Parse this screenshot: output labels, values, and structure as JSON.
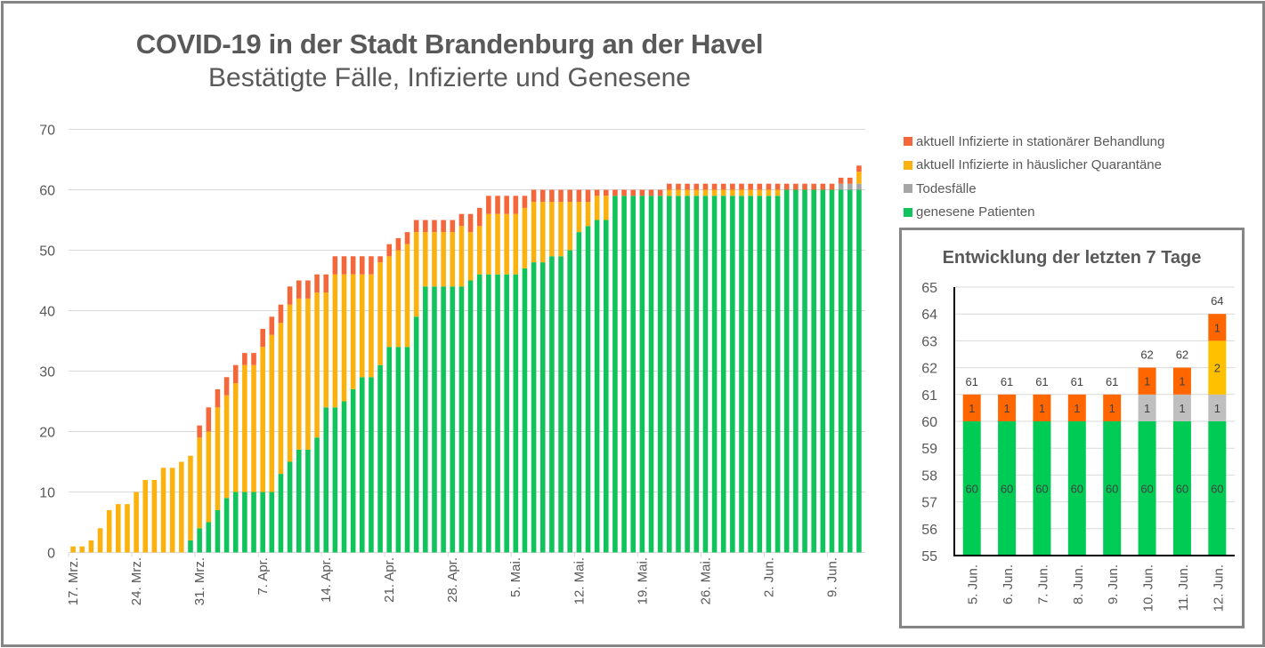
{
  "title": "COVID-19 in der Stadt Brandenburg an der Havel",
  "subtitle": "Bestätigte Fälle, Infizierte und Genesene",
  "colors": {
    "stationaer": "#F4673B",
    "quarantaene": "#FBB20F",
    "todesfaelle": "#A6A6A6",
    "genesen": "#0FC45B",
    "inset_stationaer": "#FF6600",
    "inset_quarantaene": "#FFC000",
    "inset_todesfaelle": "#BFBFBF",
    "inset_genesen": "#00CC55",
    "gridline": "#D9D9D9",
    "text": "#595959"
  },
  "legend": [
    {
      "key": "stationaer",
      "label": "aktuell Infizierte in stationärer Behandlung"
    },
    {
      "key": "quarantaene",
      "label": "aktuell Infizierte in häuslicher Quarantäne"
    },
    {
      "key": "todesfaelle",
      "label": "Todesfälle"
    },
    {
      "key": "genesen",
      "label": "genesene Patienten"
    }
  ],
  "chart_data": [
    {
      "type": "bar",
      "stacked": true,
      "title": "COVID-19 in der Stadt Brandenburg an der Havel",
      "subtitle": "Bestätigte Fälle, Infizierte und Genesene",
      "xlabel": "",
      "ylabel": "",
      "ylim": [
        0,
        70
      ],
      "yticks": [
        0,
        10,
        20,
        30,
        40,
        50,
        60,
        70
      ],
      "grid": true,
      "legend_position": "right",
      "start_date": "17. Mrz.",
      "num_days": 88,
      "xtick_every": 7,
      "xtick_labels": [
        "17. Mrz.",
        "24. Mrz.",
        "31. Mrz.",
        "7. Apr.",
        "14. Apr.",
        "21. Apr.",
        "28. Apr.",
        "5. Mai.",
        "12. Mai.",
        "19. Mai.",
        "26. Mai.",
        "2. Jun.",
        "9. Jun."
      ],
      "series": [
        {
          "name": "genesene Patienten",
          "key": "genesen",
          "values": [
            0,
            0,
            0,
            0,
            0,
            0,
            0,
            0,
            0,
            0,
            0,
            0,
            0,
            2,
            4,
            5,
            7,
            9,
            10,
            10,
            10,
            10,
            10,
            13,
            15,
            17,
            17,
            19,
            24,
            24,
            25,
            27,
            29,
            29,
            31,
            34,
            34,
            34,
            39,
            44,
            44,
            44,
            44,
            44,
            45,
            46,
            46,
            46,
            46,
            46,
            47,
            48,
            48,
            49,
            49,
            50,
            53,
            54,
            55,
            55,
            59,
            59,
            59,
            59,
            59,
            59,
            59,
            59,
            59,
            59,
            59,
            59,
            59,
            59,
            59,
            59,
            59,
            59,
            59,
            60,
            60,
            60,
            60,
            60,
            60,
            60,
            60,
            60
          ]
        },
        {
          "name": "Todesfälle",
          "key": "todesfaelle",
          "values": [
            0,
            0,
            0,
            0,
            0,
            0,
            0,
            0,
            0,
            0,
            0,
            0,
            0,
            0,
            0,
            0,
            0,
            0,
            0,
            0,
            0,
            0,
            0,
            0,
            0,
            0,
            0,
            0,
            0,
            0,
            0,
            0,
            0,
            0,
            0,
            0,
            0,
            0,
            0,
            0,
            0,
            0,
            0,
            0,
            0,
            0,
            0,
            0,
            0,
            0,
            0,
            0,
            0,
            0,
            0,
            0,
            0,
            0,
            0,
            0,
            0,
            0,
            0,
            0,
            0,
            0,
            0,
            0,
            0,
            0,
            0,
            0,
            0,
            0,
            0,
            0,
            0,
            0,
            0,
            0,
            0,
            0,
            0,
            0,
            0,
            1,
            1,
            1
          ]
        },
        {
          "name": "aktuell Infizierte in häuslicher Quarantäne",
          "key": "quarantaene",
          "values": [
            1,
            1,
            2,
            4,
            7,
            8,
            8,
            10,
            12,
            12,
            14,
            14,
            15,
            14,
            15,
            15,
            17,
            17,
            18,
            21,
            21,
            24,
            26,
            25,
            26,
            25,
            25,
            24,
            19,
            22,
            21,
            19,
            17,
            17,
            17,
            15,
            16,
            17,
            14,
            9,
            9,
            9,
            9,
            10,
            8,
            8,
            10,
            10,
            10,
            10,
            10,
            10,
            10,
            9,
            9,
            8,
            5,
            4,
            4,
            4,
            0,
            0,
            0,
            0,
            0,
            0,
            1,
            1,
            1,
            1,
            1,
            1,
            1,
            1,
            1,
            1,
            1,
            1,
            1,
            0,
            0,
            0,
            0,
            0,
            0,
            0,
            0,
            2
          ]
        },
        {
          "name": "aktuell Infizierte in stationärer Behandlung",
          "key": "stationaer",
          "values": [
            0,
            0,
            0,
            0,
            0,
            0,
            0,
            0,
            0,
            0,
            0,
            0,
            0,
            0,
            2,
            4,
            3,
            3,
            3,
            2,
            2,
            3,
            3,
            3,
            3,
            3,
            3,
            3,
            3,
            3,
            3,
            3,
            3,
            3,
            1,
            2,
            2,
            2,
            2,
            2,
            2,
            2,
            2,
            2,
            3,
            3,
            3,
            3,
            3,
            3,
            2,
            2,
            2,
            2,
            2,
            2,
            2,
            2,
            1,
            1,
            1,
            1,
            1,
            1,
            1,
            1,
            1,
            1,
            1,
            1,
            1,
            1,
            1,
            1,
            1,
            1,
            1,
            1,
            1,
            1,
            1,
            1,
            1,
            1,
            1,
            1,
            1,
            1
          ]
        }
      ]
    },
    {
      "type": "bar",
      "stacked": true,
      "title": "Entwicklung der letzten 7 Tage",
      "ylim": [
        55,
        65
      ],
      "yticks": [
        55,
        56,
        57,
        58,
        59,
        60,
        61,
        62,
        63,
        64,
        65
      ],
      "grid": true,
      "categories": [
        "5. Jun.",
        "6. Jun.",
        "7. Jun.",
        "8. Jun.",
        "9. Jun.",
        "10. Jun.",
        "11. Jun.",
        "12. Jun."
      ],
      "series": [
        {
          "name": "genesene Patienten",
          "key": "inset_genesen",
          "values": [
            60,
            60,
            60,
            60,
            60,
            60,
            60,
            60
          ]
        },
        {
          "name": "Todesfälle",
          "key": "inset_todesfaelle",
          "values": [
            0,
            0,
            0,
            0,
            0,
            1,
            1,
            1
          ]
        },
        {
          "name": "aktuell Infizierte in häuslicher Quarantäne",
          "key": "inset_quarantaene",
          "values": [
            0,
            0,
            0,
            0,
            0,
            0,
            0,
            2
          ]
        },
        {
          "name": "aktuell Infizierte in stationärer Behandlung",
          "key": "inset_stationaer",
          "values": [
            1,
            1,
            1,
            1,
            1,
            1,
            1,
            1
          ]
        }
      ],
      "totals": [
        61,
        61,
        61,
        61,
        61,
        62,
        62,
        64
      ]
    }
  ]
}
